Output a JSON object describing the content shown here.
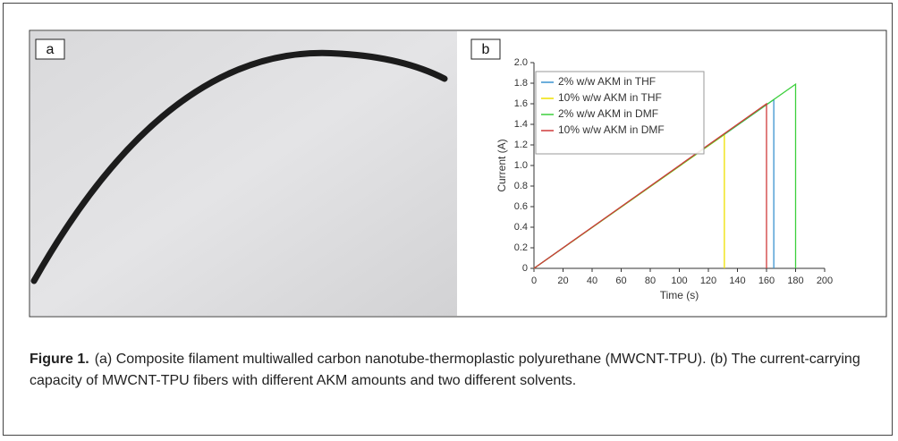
{
  "panels": [
    {
      "label": "a"
    },
    {
      "label": "b"
    }
  ],
  "chart_data": {
    "type": "line",
    "xlabel": "Time (s)",
    "ylabel": "Current (A)",
    "xlim": [
      0,
      200
    ],
    "xticks": [
      0,
      20,
      40,
      60,
      80,
      100,
      120,
      140,
      160,
      180,
      200
    ],
    "ylim": [
      0,
      2
    ],
    "yticks": [
      0,
      0.2,
      0.4,
      0.6,
      0.8,
      {
        "value": 1,
        "label": "1.0"
      },
      1.2,
      1.4,
      1.6,
      1.8,
      {
        "value": 2,
        "label": "2.0"
      }
    ],
    "legend": "upper left",
    "series": [
      {
        "name": "2% w/w AKM in THF",
        "color": "#3a93cf",
        "x": [
          0,
          165,
          165
        ],
        "values": [
          0,
          1.64,
          0
        ]
      },
      {
        "name": "10% w/w AKM in THF",
        "color": "#efe000",
        "x": [
          0,
          131,
          131
        ],
        "values": [
          0,
          1.3,
          0
        ]
      },
      {
        "name": "2% w/w AKM in DMF",
        "color": "#3ccf3c",
        "x": [
          0,
          180,
          180
        ],
        "values": [
          0,
          1.79,
          0
        ]
      },
      {
        "name": "10% w/w AKM in DMF",
        "color": "#cf3a3a",
        "x": [
          0,
          160,
          160
        ],
        "values": [
          0,
          1.6,
          0
        ]
      }
    ]
  },
  "caption": {
    "label": "Figure 1.",
    "text": "(a) Composite filament multiwalled carbon nanotube-thermoplastic polyurethane (MWCNT-TPU). (b) The current-carrying capacity of MWCNT-TPU fibers with different AKM amounts and two different solvents."
  }
}
